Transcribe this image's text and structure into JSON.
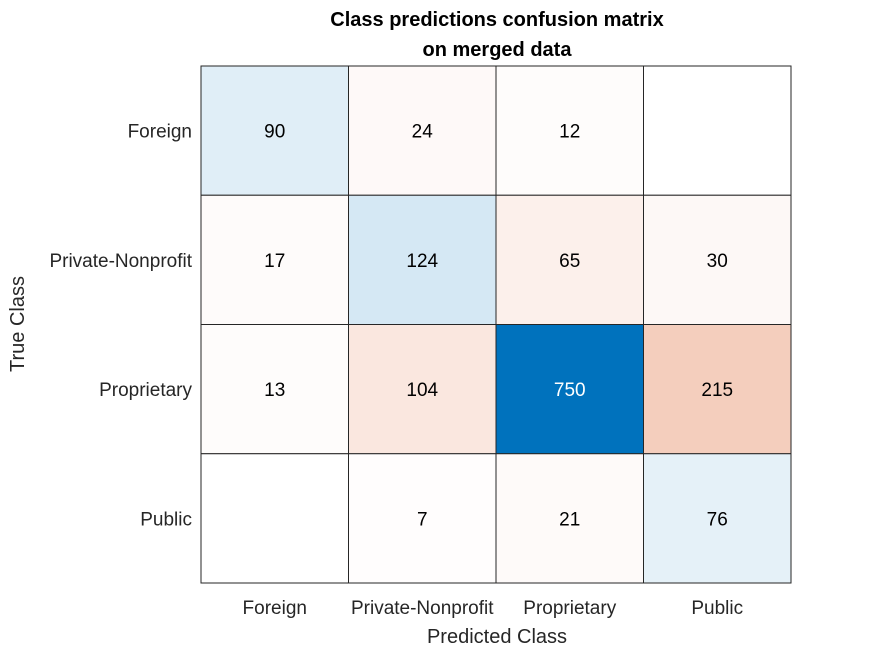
{
  "chart_data": {
    "type": "heatmap",
    "title_lines": [
      "Class predictions confusion matrix",
      "on merged data"
    ],
    "xlabel": "Predicted Class",
    "ylabel": "True Class",
    "x_categories": [
      "Foreign",
      "Private-Nonprofit",
      "Proprietary",
      "Public"
    ],
    "y_categories": [
      "Foreign",
      "Private-Nonprofit",
      "Proprietary",
      "Public"
    ],
    "matrix": [
      [
        90,
        24,
        12,
        null
      ],
      [
        17,
        124,
        65,
        30
      ],
      [
        13,
        104,
        750,
        215
      ],
      [
        null,
        7,
        21,
        76
      ]
    ],
    "colors": {
      "diagonal": "#0072bd",
      "off_diagonal": "#d95319",
      "background": "#ffffff",
      "grid": "#262626"
    }
  }
}
